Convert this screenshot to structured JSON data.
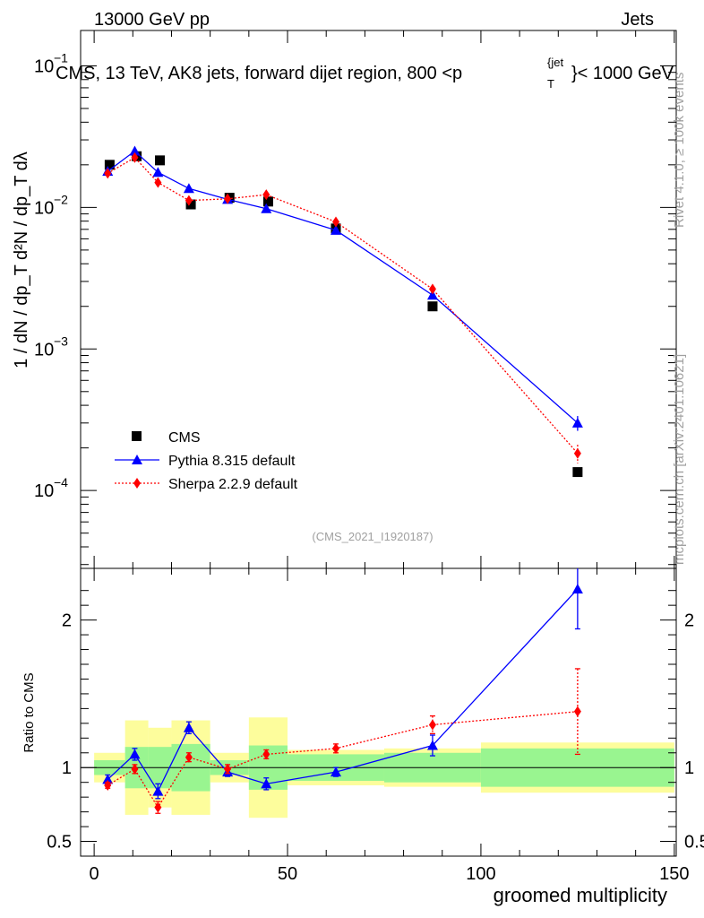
{
  "chart_data": {
    "type": "scatter",
    "header_left": "13000 GeV pp",
    "header_right": "Jets",
    "title": "CMS, 13 TeV, AK8 jets, forward dijet region, 800 <p",
    "title_sup": "{jet",
    "title_sub": "T",
    "title_end": "}< 1000 GeV",
    "ylabel_upper": "1 / dN / dp_T  d²N / dp_T dλ",
    "ylabel_lower": "Ratio to CMS",
    "xlabel": "groomed multiplicity",
    "analysis_tag": "(CMS_2021_I1920187)",
    "side_label_top": "Rivet 4.1.0, ≥ 100k events",
    "side_label_bottom": "mcplots.cern.ch [arXiv:2401.10621]",
    "xlim": [
      -3.5,
      150.5
    ],
    "ylim_upper_log10": [
      -4.55,
      -0.75
    ],
    "ylim_lower": [
      0.4,
      2.35
    ],
    "upper_ticks": [
      {
        "exp": -1,
        "label": "10",
        "sup": "−1"
      },
      {
        "exp": -2,
        "label": "10",
        "sup": "−2"
      },
      {
        "exp": -3,
        "label": "10",
        "sup": "−3"
      },
      {
        "exp": -4,
        "label": "10",
        "sup": "−4"
      }
    ],
    "lower_ticks": [
      {
        "value": 2,
        "label": "2"
      },
      {
        "value": 1,
        "label": "1"
      },
      {
        "value": 0.5,
        "label": "0.5"
      }
    ],
    "x_ticks": [
      {
        "value": 0,
        "label": "0"
      },
      {
        "value": 50,
        "label": "50"
      },
      {
        "value": 100,
        "label": "100"
      },
      {
        "value": 150,
        "label": "150"
      }
    ],
    "bins": [
      {
        "lo": 0,
        "hi": 8,
        "cms": 0.02,
        "cms_stat": 0.05,
        "cms_tot": 0.1
      },
      {
        "lo": 8,
        "hi": 14,
        "cms": 0.023,
        "cms_stat": 0.14,
        "cms_tot": 0.32
      },
      {
        "lo": 14,
        "hi": 20,
        "cms": 0.0215,
        "cms_stat": 0.14,
        "cms_tot": 0.27
      },
      {
        "lo": 20,
        "hi": 30,
        "cms": 0.0105,
        "cms_stat": 0.16,
        "cms_tot": 0.32
      },
      {
        "lo": 30,
        "hi": 40,
        "cms": 0.0117,
        "cms_stat": 0.05,
        "cms_tot": 0.1
      },
      {
        "lo": 40,
        "hi": 50,
        "cms": 0.011,
        "cms_stat": 0.15,
        "cms_tot": 0.34
      },
      {
        "lo": 50,
        "hi": 75,
        "cms": 0.0071,
        "cms_stat": 0.09,
        "cms_tot": 0.12
      },
      {
        "lo": 75,
        "hi": 100,
        "cms": 0.002,
        "cms_stat": 0.1,
        "cms_tot": 0.13
      },
      {
        "lo": 100,
        "hi": 150,
        "cms": 0.000135,
        "cms_stat": 0.13,
        "cms_tot": 0.17
      }
    ],
    "series": [
      {
        "name": "Pythia 8.315 default",
        "color": "#0000ff",
        "marker": "triangle",
        "dash": "solid",
        "x": [
          3.5,
          10.5,
          16.5,
          24.5,
          34.5,
          44.5,
          62.5,
          87.5,
          125
        ],
        "values": [
          0.018,
          0.025,
          0.0177,
          0.0136,
          0.0114,
          0.0098,
          0.0069,
          0.0024,
          0.0003
        ],
        "ratio": [
          0.92,
          1.09,
          0.84,
          1.27,
          0.97,
          0.89,
          0.97,
          1.15,
          2.21
        ],
        "ratio_err": [
          0.03,
          0.04,
          0.05,
          0.04,
          0.03,
          0.04,
          0.03,
          0.07,
          0.27
        ],
        "err_rel": [
          0.02,
          0.02,
          0.03,
          0.02,
          0.02,
          0.03,
          0.03,
          0.05,
          0.12
        ]
      },
      {
        "name": "Sherpa 2.2.9 default",
        "color": "#ff0000",
        "marker": "diamond",
        "dash": "dotted",
        "x": [
          3.5,
          10.5,
          16.5,
          24.5,
          34.5,
          44.5,
          62.5,
          87.5,
          125
        ],
        "values": [
          0.0174,
          0.0225,
          0.015,
          0.0112,
          0.0115,
          0.0123,
          0.0079,
          0.00265,
          0.000183
        ],
        "ratio": [
          0.88,
          0.99,
          0.73,
          1.07,
          0.99,
          1.09,
          1.13,
          1.29,
          1.38
        ],
        "ratio_err": [
          0.02,
          0.03,
          0.04,
          0.03,
          0.03,
          0.03,
          0.03,
          0.06,
          0.29
        ],
        "err_rel": [
          0.02,
          0.02,
          0.03,
          0.02,
          0.02,
          0.03,
          0.03,
          0.05,
          0.15
        ]
      }
    ],
    "data_series": {
      "name": "CMS",
      "color": "#000000",
      "marker": "square"
    },
    "band_colors": {
      "stat": "#99f590",
      "total": "#fdfd9c"
    }
  }
}
